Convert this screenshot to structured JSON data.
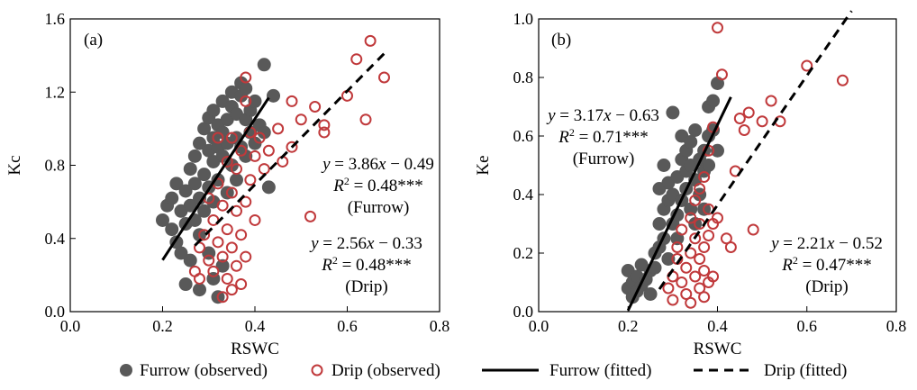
{
  "colors": {
    "furrow": "#595959",
    "drip": "#c0393b",
    "line": "#000000"
  },
  "legend": {
    "placement": "bottom",
    "items": [
      {
        "key": "furrow_obs",
        "label": "Furrow (observed)"
      },
      {
        "key": "drip_obs",
        "label": "Drip (observed)"
      },
      {
        "key": "furrow_fit",
        "label": "Furrow (fitted)"
      },
      {
        "key": "drip_fit",
        "label": "Drip (fitted)"
      }
    ]
  },
  "chart_data": [
    {
      "type": "scatter",
      "panel_label": "(a)",
      "xlabel": "RSWC",
      "ylabel": "Kc",
      "xlim": [
        0.0,
        0.8
      ],
      "ylim": [
        0.0,
        1.6
      ],
      "xticks": [
        "0.0",
        "0.2",
        "0.4",
        "0.6",
        "0.8"
      ],
      "yticks": [
        "0.0",
        "0.4",
        "0.8",
        "1.2",
        "1.6"
      ],
      "grid": false,
      "series": [
        {
          "name": "Furrow (observed)",
          "marker": "filled-circle",
          "points": [
            [
              0.2,
              0.5
            ],
            [
              0.21,
              0.58
            ],
            [
              0.22,
              0.45
            ],
            [
              0.22,
              0.62
            ],
            [
              0.23,
              0.38
            ],
            [
              0.23,
              0.7
            ],
            [
              0.24,
              0.55
            ],
            [
              0.24,
              0.32
            ],
            [
              0.25,
              0.66
            ],
            [
              0.25,
              0.48
            ],
            [
              0.25,
              0.15
            ],
            [
              0.26,
              0.78
            ],
            [
              0.26,
              0.58
            ],
            [
              0.26,
              0.28
            ],
            [
              0.27,
              0.7
            ],
            [
              0.27,
              0.5
            ],
            [
              0.27,
              0.85
            ],
            [
              0.28,
              0.62
            ],
            [
              0.28,
              0.92
            ],
            [
              0.28,
              0.42
            ],
            [
              0.28,
              0.12
            ],
            [
              0.29,
              0.75
            ],
            [
              0.29,
              1.0
            ],
            [
              0.29,
              0.55
            ],
            [
              0.3,
              0.68
            ],
            [
              0.3,
              0.88
            ],
            [
              0.3,
              1.06
            ],
            [
              0.3,
              0.32
            ],
            [
              0.31,
              0.82
            ],
            [
              0.31,
              0.95
            ],
            [
              0.31,
              1.1
            ],
            [
              0.31,
              0.6
            ],
            [
              0.31,
              0.18
            ],
            [
              0.32,
              0.9
            ],
            [
              0.32,
              1.02
            ],
            [
              0.32,
              0.72
            ],
            [
              0.32,
              0.08
            ],
            [
              0.33,
              1.15
            ],
            [
              0.33,
              0.85
            ],
            [
              0.33,
              0.98
            ],
            [
              0.33,
              0.25
            ],
            [
              0.34,
              1.05
            ],
            [
              0.34,
              0.92
            ],
            [
              0.34,
              0.65
            ],
            [
              0.35,
              1.12
            ],
            [
              0.35,
              0.8
            ],
            [
              0.35,
              1.2
            ],
            [
              0.36,
              0.95
            ],
            [
              0.36,
              1.08
            ],
            [
              0.36,
              0.72
            ],
            [
              0.37,
              1.18
            ],
            [
              0.37,
              0.9
            ],
            [
              0.37,
              1.25
            ],
            [
              0.38,
              1.05
            ],
            [
              0.38,
              0.85
            ],
            [
              0.38,
              1.22
            ],
            [
              0.39,
              0.98
            ],
            [
              0.39,
              1.1
            ],
            [
              0.4,
              1.15
            ],
            [
              0.4,
              0.92
            ],
            [
              0.41,
              1.02
            ],
            [
              0.42,
              1.35
            ],
            [
              0.42,
              0.98
            ],
            [
              0.43,
              0.68
            ],
            [
              0.44,
              1.18
            ]
          ]
        },
        {
          "name": "Drip (observed)",
          "marker": "open-circle",
          "points": [
            [
              0.27,
              0.22
            ],
            [
              0.28,
              0.35
            ],
            [
              0.28,
              0.18
            ],
            [
              0.29,
              0.42
            ],
            [
              0.3,
              0.28
            ],
            [
              0.3,
              0.62
            ],
            [
              0.31,
              0.5
            ],
            [
              0.31,
              0.22
            ],
            [
              0.32,
              0.7
            ],
            [
              0.32,
              0.38
            ],
            [
              0.32,
              0.95
            ],
            [
              0.33,
              0.58
            ],
            [
              0.33,
              0.3
            ],
            [
              0.33,
              0.08
            ],
            [
              0.34,
              0.82
            ],
            [
              0.34,
              0.45
            ],
            [
              0.34,
              0.18
            ],
            [
              0.35,
              0.65
            ],
            [
              0.35,
              0.95
            ],
            [
              0.35,
              0.35
            ],
            [
              0.35,
              0.12
            ],
            [
              0.36,
              0.55
            ],
            [
              0.36,
              0.78
            ],
            [
              0.36,
              0.25
            ],
            [
              0.37,
              0.42
            ],
            [
              0.37,
              0.88
            ],
            [
              0.37,
              0.15
            ],
            [
              0.38,
              0.6
            ],
            [
              0.38,
              1.15
            ],
            [
              0.38,
              1.28
            ],
            [
              0.38,
              0.3
            ],
            [
              0.39,
              0.72
            ],
            [
              0.39,
              0.98
            ],
            [
              0.4,
              0.85
            ],
            [
              0.4,
              0.5
            ],
            [
              0.41,
              0.95
            ],
            [
              0.42,
              0.78
            ],
            [
              0.43,
              0.88
            ],
            [
              0.45,
              1.0
            ],
            [
              0.46,
              0.82
            ],
            [
              0.48,
              1.15
            ],
            [
              0.48,
              0.9
            ],
            [
              0.5,
              1.05
            ],
            [
              0.52,
              0.52
            ],
            [
              0.53,
              1.12
            ],
            [
              0.55,
              1.02
            ],
            [
              0.55,
              0.98
            ],
            [
              0.6,
              1.18
            ],
            [
              0.62,
              1.38
            ],
            [
              0.64,
              1.05
            ],
            [
              0.65,
              1.48
            ],
            [
              0.68,
              1.28
            ]
          ]
        }
      ],
      "fits": [
        {
          "name": "Furrow (fitted)",
          "style": "solid",
          "slope": 3.86,
          "intercept": -0.49,
          "x_range": [
            0.2,
            0.43
          ]
        },
        {
          "name": "Drip (fitted)",
          "style": "dashed",
          "slope": 2.56,
          "intercept": -0.33,
          "x_range": [
            0.27,
            0.68
          ]
        }
      ],
      "annotations": [
        {
          "key": "furrow",
          "lines": [
            "y = 3.86x − 0.49",
            "R2 = 0.48***",
            "(Furrow)"
          ]
        },
        {
          "key": "drip",
          "lines": [
            "y = 2.56x − 0.33",
            "R2 = 0.48***",
            "(Drip)"
          ]
        }
      ]
    },
    {
      "type": "scatter",
      "panel_label": "(b)",
      "xlabel": "RSWC",
      "ylabel": "Ke",
      "xlim": [
        0.0,
        0.8
      ],
      "ylim": [
        0.0,
        1.0
      ],
      "xticks": [
        "0.0",
        "0.2",
        "0.4",
        "0.6",
        "0.8"
      ],
      "yticks": [
        "0.0",
        "0.2",
        "0.4",
        "0.6",
        "0.8",
        "1.0"
      ],
      "grid": false,
      "series": [
        {
          "name": "Furrow (observed)",
          "marker": "filled-circle",
          "points": [
            [
              0.2,
              0.14
            ],
            [
              0.2,
              0.08
            ],
            [
              0.21,
              0.1
            ],
            [
              0.21,
              0.05
            ],
            [
              0.22,
              0.12
            ],
            [
              0.22,
              0.07
            ],
            [
              0.23,
              0.09
            ],
            [
              0.23,
              0.16
            ],
            [
              0.24,
              0.11
            ],
            [
              0.25,
              0.14
            ],
            [
              0.25,
              0.06
            ],
            [
              0.26,
              0.2
            ],
            [
              0.26,
              0.15
            ],
            [
              0.27,
              0.3
            ],
            [
              0.27,
              0.42
            ],
            [
              0.27,
              0.22
            ],
            [
              0.28,
              0.25
            ],
            [
              0.28,
              0.5
            ],
            [
              0.28,
              0.35
            ],
            [
              0.29,
              0.38
            ],
            [
              0.29,
              0.44
            ],
            [
              0.29,
              0.18
            ],
            [
              0.3,
              0.68
            ],
            [
              0.3,
              0.3
            ],
            [
              0.3,
              0.4
            ],
            [
              0.31,
              0.46
            ],
            [
              0.31,
              0.33
            ],
            [
              0.31,
              0.25
            ],
            [
              0.32,
              0.52
            ],
            [
              0.32,
              0.38
            ],
            [
              0.32,
              0.6
            ],
            [
              0.33,
              0.55
            ],
            [
              0.33,
              0.42
            ],
            [
              0.33,
              0.48
            ],
            [
              0.34,
              0.58
            ],
            [
              0.34,
              0.35
            ],
            [
              0.34,
              0.5
            ],
            [
              0.35,
              0.45
            ],
            [
              0.35,
              0.62
            ],
            [
              0.35,
              0.3
            ],
            [
              0.36,
              0.52
            ],
            [
              0.36,
              0.4
            ],
            [
              0.37,
              0.48
            ],
            [
              0.37,
              0.55
            ],
            [
              0.37,
              0.35
            ],
            [
              0.38,
              0.6
            ],
            [
              0.38,
              0.7
            ],
            [
              0.38,
              0.5
            ],
            [
              0.39,
              0.72
            ],
            [
              0.39,
              0.62
            ],
            [
              0.4,
              0.78
            ],
            [
              0.4,
              0.55
            ]
          ]
        },
        {
          "name": "Drip (observed)",
          "marker": "open-circle",
          "points": [
            [
              0.29,
              0.08
            ],
            [
              0.3,
              0.04
            ],
            [
              0.3,
              0.12
            ],
            [
              0.31,
              0.18
            ],
            [
              0.31,
              0.22
            ],
            [
              0.32,
              0.1
            ],
            [
              0.32,
              0.28
            ],
            [
              0.33,
              0.06
            ],
            [
              0.33,
              0.15
            ],
            [
              0.34,
              0.2
            ],
            [
              0.34,
              0.32
            ],
            [
              0.34,
              0.03
            ],
            [
              0.35,
              0.12
            ],
            [
              0.35,
              0.25
            ],
            [
              0.35,
              0.38
            ],
            [
              0.36,
              0.08
            ],
            [
              0.36,
              0.18
            ],
            [
              0.36,
              0.3
            ],
            [
              0.36,
              0.42
            ],
            [
              0.37,
              0.05
            ],
            [
              0.37,
              0.14
            ],
            [
              0.37,
              0.22
            ],
            [
              0.37,
              0.46
            ],
            [
              0.38,
              0.1
            ],
            [
              0.38,
              0.26
            ],
            [
              0.38,
              0.35
            ],
            [
              0.38,
              0.55
            ],
            [
              0.39,
              0.12
            ],
            [
              0.39,
              0.3
            ],
            [
              0.39,
              0.63
            ],
            [
              0.4,
              0.32
            ],
            [
              0.4,
              0.97
            ],
            [
              0.41,
              0.81
            ],
            [
              0.42,
              0.25
            ],
            [
              0.43,
              0.22
            ],
            [
              0.44,
              0.48
            ],
            [
              0.45,
              0.66
            ],
            [
              0.46,
              0.62
            ],
            [
              0.47,
              0.68
            ],
            [
              0.48,
              0.28
            ],
            [
              0.5,
              0.65
            ],
            [
              0.52,
              0.72
            ],
            [
              0.54,
              0.65
            ],
            [
              0.6,
              0.84
            ],
            [
              0.68,
              0.79
            ]
          ]
        }
      ],
      "fits": [
        {
          "name": "Furrow (fitted)",
          "style": "solid",
          "slope": 3.17,
          "intercept": -0.63,
          "x_range": [
            0.2,
            0.43
          ]
        },
        {
          "name": "Drip (fitted)",
          "style": "dashed",
          "slope": 2.21,
          "intercept": -0.52,
          "x_range": [
            0.27,
            0.7
          ]
        }
      ],
      "annotations": [
        {
          "key": "furrow",
          "lines": [
            "y = 3.17x − 0.63",
            "R2 = 0.71***",
            "(Furrow)"
          ]
        },
        {
          "key": "drip",
          "lines": [
            "y = 2.21x − 0.52",
            "R2 = 0.47***",
            "(Drip)"
          ]
        }
      ]
    }
  ]
}
